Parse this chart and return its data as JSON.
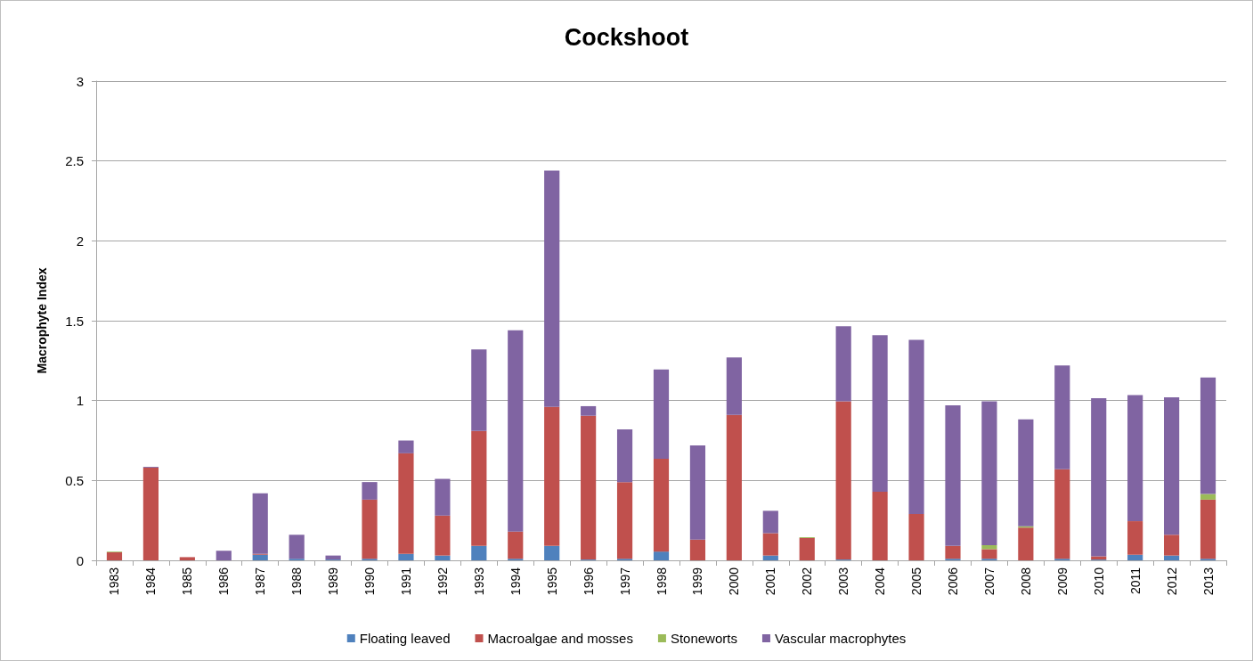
{
  "chart_data": {
    "type": "bar",
    "title": "Cockshoot",
    "ylabel": "Macrophyte Index",
    "stacked": true,
    "grid": "y",
    "legend": "bottom",
    "categories": [
      "1983",
      "1984",
      "1985",
      "1986",
      "1987",
      "1988",
      "1989",
      "1990",
      "1991",
      "1992",
      "1993",
      "1994",
      "1995",
      "1996",
      "1997",
      "1998",
      "1999",
      "2000",
      "2001",
      "2002",
      "2003",
      "2004",
      "2005",
      "2006",
      "2007",
      "2008",
      "2009",
      "2010",
      "2011",
      "2012",
      "2013"
    ],
    "ylim": [
      0,
      3
    ],
    "yticks": [
      0,
      0.5,
      1,
      1.5,
      2,
      2.5,
      3
    ],
    "series": [
      {
        "name": "Floating leaved",
        "color": "#4f81bd",
        "values": [
          0,
          0,
          0,
          0,
          0.035,
          0.01,
          0.005,
          0.01,
          0.04,
          0.03,
          0.09,
          0.01,
          0.09,
          0.005,
          0.01,
          0.055,
          0,
          0,
          0.03,
          0,
          0.005,
          0,
          0,
          0.01,
          0.01,
          0,
          0.01,
          0.005,
          0.035,
          0.03,
          0.01
        ]
      },
      {
        "name": "Macroalgae and mosses",
        "color": "#c0504d",
        "values": [
          0.05,
          0.58,
          0.02,
          0,
          0.005,
          0,
          0,
          0.37,
          0.63,
          0.25,
          0.72,
          0.17,
          0.87,
          0.9,
          0.48,
          0.58,
          0.13,
          0.91,
          0.14,
          0.14,
          0.99,
          0.43,
          0.29,
          0.08,
          0.06,
          0.205,
          0.56,
          0.02,
          0.21,
          0.13,
          0.37
        ]
      },
      {
        "name": "Stoneworts",
        "color": "#9bbb59",
        "values": [
          0.005,
          0,
          0,
          0,
          0,
          0,
          0,
          0,
          0,
          0,
          0,
          0,
          0,
          0,
          0,
          0,
          0,
          0,
          0,
          0.005,
          0,
          0,
          0,
          0,
          0.025,
          0.008,
          0,
          0,
          0,
          0,
          0.035
        ]
      },
      {
        "name": "Vascular macrophytes",
        "color": "#8064a2",
        "values": [
          0,
          0.005,
          0,
          0.06,
          0.38,
          0.15,
          0.025,
          0.11,
          0.08,
          0.23,
          0.51,
          1.26,
          1.48,
          0.06,
          0.33,
          0.56,
          0.59,
          0.36,
          0.14,
          0,
          0.47,
          0.98,
          1.09,
          0.88,
          0.9,
          0.67,
          0.65,
          0.99,
          0.79,
          0.86,
          0.73
        ]
      }
    ]
  }
}
